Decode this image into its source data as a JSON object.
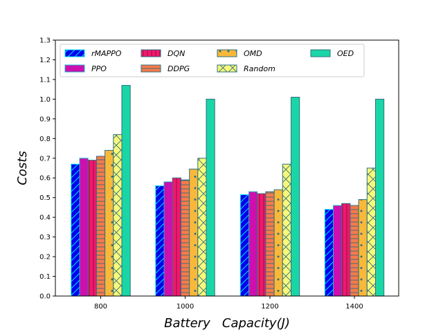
{
  "chart_data": {
    "type": "bar",
    "title": "",
    "xlabel": "Battery   Capacity(J)",
    "ylabel": "Costs",
    "ylim": [
      0,
      1.3
    ],
    "yticks": [
      "0.0",
      "0.1",
      "0.2",
      "0.3",
      "0.4",
      "0.5",
      "0.6",
      "0.7",
      "0.8",
      "0.9",
      "1.0",
      "1.1",
      "1.2",
      "1.3"
    ],
    "categories": [
      "800",
      "1000",
      "1200",
      "1400"
    ],
    "grid": false,
    "legend_position": "top",
    "series": [
      {
        "name": "rMAPPO",
        "values": [
          0.67,
          0.56,
          0.515,
          0.44
        ],
        "color": "#0000ee",
        "edge": "#00e5ee",
        "hatch": "slash"
      },
      {
        "name": "PPO",
        "values": [
          0.7,
          0.58,
          0.53,
          0.46
        ],
        "color": "#cc0fae",
        "edge": "#1fb3c9",
        "hatch": "none"
      },
      {
        "name": "DQN",
        "values": [
          0.69,
          0.6,
          0.52,
          0.47
        ],
        "color": "#f0186e",
        "edge": "#2d6f80",
        "hatch": "vline"
      },
      {
        "name": "DDPG",
        "values": [
          0.71,
          0.59,
          0.53,
          0.46
        ],
        "color": "#f77a4a",
        "edge": "#2d6f80",
        "hatch": "hline"
      },
      {
        "name": "OMD",
        "values": [
          0.74,
          0.645,
          0.54,
          0.49
        ],
        "color": "#f8b83a",
        "edge": "#2d6f80",
        "hatch": "dots"
      },
      {
        "name": "Random",
        "values": [
          0.82,
          0.7,
          0.67,
          0.65
        ],
        "color": "#f8f87a",
        "edge": "#2d6f80",
        "hatch": "cross"
      },
      {
        "name": "OED",
        "values": [
          1.07,
          1.0,
          1.01,
          1.0
        ],
        "color": "#1ad6a6",
        "edge": "#2d6f80",
        "hatch": "none"
      }
    ]
  }
}
